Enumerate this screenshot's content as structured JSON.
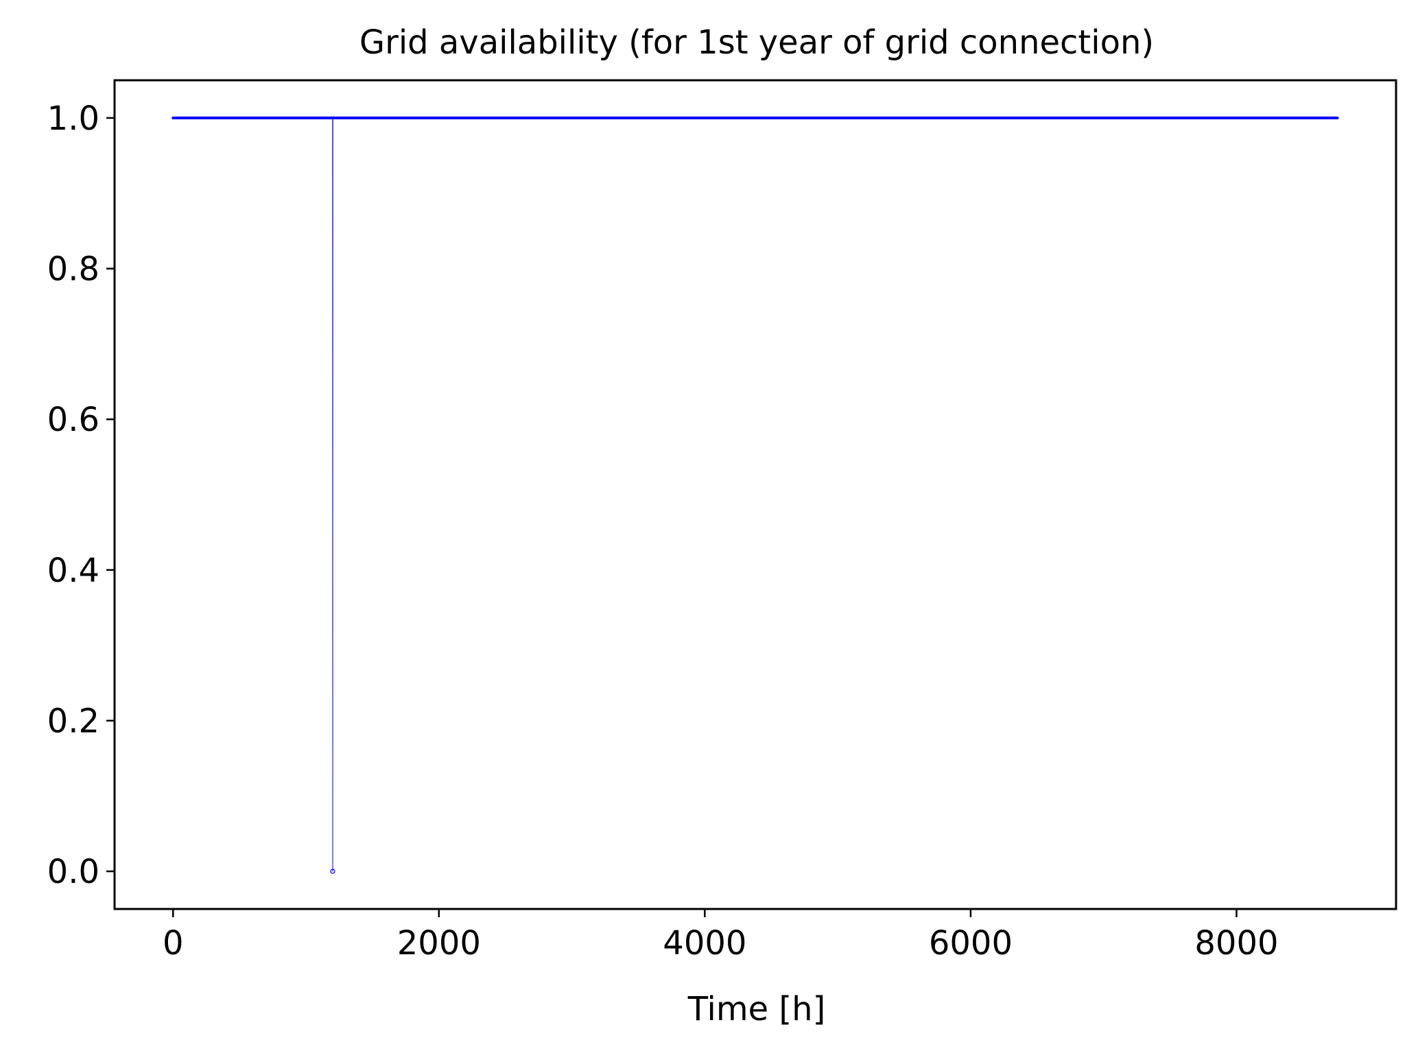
{
  "chart_data": {
    "type": "line",
    "title": "Grid availability (for 1st year of grid connection)",
    "xlabel": "Time [h]",
    "ylabel": "",
    "xlim": [
      -440,
      9200
    ],
    "ylim": [
      -0.05,
      1.05
    ],
    "x_ticks": [
      0,
      2000,
      4000,
      6000,
      8000
    ],
    "x_tick_labels": [
      "0",
      "2000",
      "4000",
      "6000",
      "8000"
    ],
    "y_ticks": [
      0.0,
      0.2,
      0.4,
      0.6,
      0.8,
      1.0
    ],
    "y_tick_labels": [
      "0.0",
      "0.2",
      "0.4",
      "0.6",
      "0.8",
      "1.0"
    ],
    "grid": false,
    "series": [
      {
        "color": "#0000ff",
        "x": [
          0,
          1200,
          1201,
          1202,
          8759
        ],
        "y": [
          1,
          1,
          0,
          1,
          1
        ]
      }
    ],
    "marker_points": [
      {
        "x": 1201,
        "y": 0
      }
    ]
  }
}
